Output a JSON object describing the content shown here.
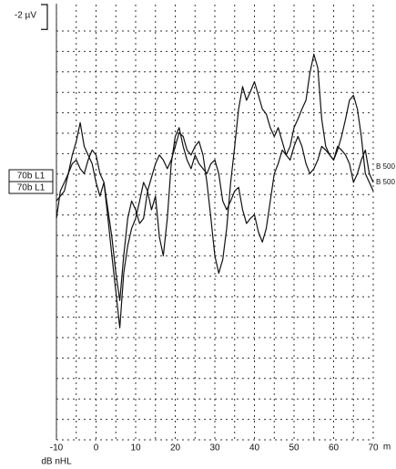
{
  "chart_data": {
    "type": "line",
    "x": [
      -10,
      -9,
      -8,
      -7,
      -6,
      -5,
      -4,
      -3,
      -2,
      -1,
      0,
      1,
      2,
      3,
      4,
      5,
      6,
      7,
      8,
      9,
      10,
      11,
      12,
      13,
      14,
      15,
      16,
      17,
      18,
      19,
      20,
      21,
      22,
      23,
      24,
      25,
      26,
      27,
      28,
      29,
      30,
      31,
      32,
      33,
      34,
      35,
      36,
      37,
      38,
      39,
      40,
      41,
      42,
      43,
      44,
      45,
      46,
      47,
      48,
      49,
      50,
      51,
      52,
      53,
      54,
      55,
      56,
      57,
      58,
      59,
      60,
      61,
      62,
      63,
      64,
      65,
      66,
      67,
      68,
      69,
      70
    ],
    "series": [
      {
        "name": "70b L1",
        "end_label": "B 500",
        "color": "#111111",
        "values": [
          -17.8,
          -20.0,
          -20.7,
          -21.4,
          -22.2,
          -22.5,
          -21.8,
          -21.4,
          -22.5,
          -23.3,
          -22.9,
          -21.4,
          -20.7,
          -18.5,
          -16.3,
          -13.4,
          -11.2,
          -14.8,
          -17.8,
          -19.2,
          -18.5,
          -17.4,
          -17.8,
          -20.0,
          -21.1,
          -22.2,
          -22.9,
          -22.5,
          -21.8,
          -22.5,
          -23.6,
          -24.7,
          -24.4,
          -23.3,
          -22.9,
          -23.6,
          -24.0,
          -22.9,
          -20.7,
          -17.8,
          -14.8,
          -13.4,
          -14.5,
          -17.0,
          -20.7,
          -23.6,
          -26.6,
          -28.4,
          -27.3,
          -28.0,
          -28.8,
          -27.7,
          -26.6,
          -26.2,
          -25.1,
          -24.4,
          -25.1,
          -24.0,
          -22.9,
          -23.6,
          -25.1,
          -25.8,
          -26.6,
          -27.3,
          -29.5,
          -31.0,
          -29.9,
          -25.8,
          -23.6,
          -22.9,
          -22.5,
          -23.3,
          -24.4,
          -25.8,
          -27.3,
          -27.7,
          -26.6,
          -24.4,
          -21.4,
          -20.7,
          -20.0
        ]
      },
      {
        "name": "70b L1",
        "end_label": "B 500",
        "color": "#111111",
        "values": [
          -19.2,
          -19.6,
          -20.0,
          -21.4,
          -22.9,
          -24.0,
          -25.5,
          -23.6,
          -22.9,
          -22.2,
          -20.7,
          -19.6,
          -20.7,
          -17.8,
          -14.8,
          -11.9,
          -9.0,
          -13.4,
          -15.6,
          -17.0,
          -17.8,
          -19.2,
          -20.7,
          -20.0,
          -18.5,
          -19.6,
          -16.3,
          -14.8,
          -17.8,
          -22.2,
          -24.4,
          -25.1,
          -23.6,
          -22.5,
          -21.8,
          -22.9,
          -22.2,
          -21.8,
          -21.4,
          -22.2,
          -22.5,
          -21.4,
          -19.2,
          -18.5,
          -19.2,
          -20.0,
          -20.3,
          -18.5,
          -17.4,
          -17.8,
          -18.1,
          -16.7,
          -15.9,
          -17.0,
          -19.2,
          -21.4,
          -22.2,
          -23.3,
          -22.9,
          -22.5,
          -23.6,
          -24.4,
          -23.6,
          -22.2,
          -21.4,
          -21.8,
          -22.5,
          -23.6,
          -23.3,
          -22.9,
          -22.5,
          -23.6,
          -23.3,
          -22.9,
          -22.2,
          -20.7,
          -21.4,
          -22.5,
          -23.3,
          -21.4,
          -20.7
        ]
      }
    ],
    "xlim": [
      -10,
      70
    ],
    "xticks": [
      -10,
      0,
      10,
      20,
      30,
      40,
      50,
      60,
      70
    ],
    "xlabel": "m",
    "level_label": "dB nHL",
    "ylim": [
      0,
      -35
    ],
    "scale_bar": {
      "value": -2,
      "label": "-2 µV"
    },
    "grid": true
  }
}
